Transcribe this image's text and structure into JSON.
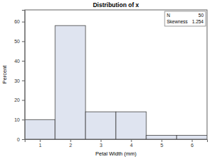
{
  "chart_data": {
    "type": "histogram",
    "title": "Distribution of x",
    "x_label": "Petal Width (mm)",
    "y_label": "Percent",
    "bins": [
      0.5,
      1.5,
      2.5,
      3.5,
      4.5,
      5.5,
      6.5
    ],
    "values": [
      10,
      58,
      14,
      14,
      2,
      2
    ],
    "color": "#dfe4f0",
    "xlim": [
      0.5,
      6.5
    ],
    "xticks": [
      1,
      2,
      3,
      4,
      5,
      6
    ],
    "ylim": [
      0,
      66
    ],
    "yticks": [
      0,
      10,
      20,
      30,
      40,
      50,
      60
    ],
    "grid": false,
    "stats": [
      {
        "label": "N",
        "value": 50
      },
      {
        "label": "Skewness",
        "value": 1.254
      }
    ]
  }
}
